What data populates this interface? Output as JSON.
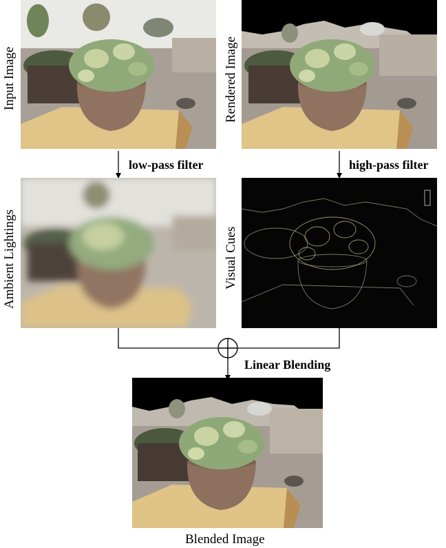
{
  "labels": {
    "input": "Input Image",
    "rendered": "Rendered Image",
    "ambient": "Ambient Lightings",
    "cues": "Visual Cues",
    "blended": "Blended Image"
  },
  "operations": {
    "low_pass": "low-pass filter",
    "high_pass": "high-pass filter",
    "blend": "Linear Blending"
  },
  "colors": {
    "line": "#000000",
    "wood": "#d9b77a",
    "pot": "#8f7260",
    "succulent": "#8faa78"
  }
}
